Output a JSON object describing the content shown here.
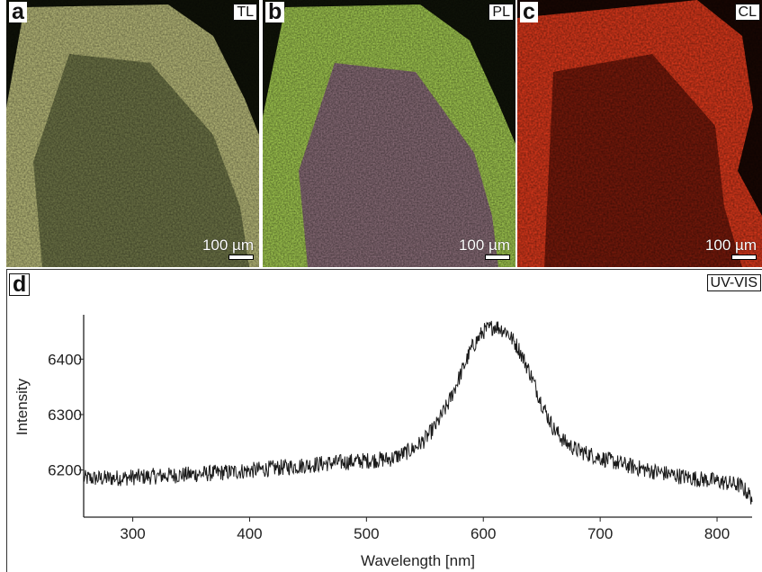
{
  "panels": [
    {
      "letter": "a",
      "mode": "TL",
      "scale": "100 µm",
      "colors": [
        "#0f1208",
        "#b9bb7a",
        "#6f7648"
      ]
    },
    {
      "letter": "b",
      "mode": "PL",
      "scale": "100 µm",
      "colors": [
        "#101409",
        "#a6cf52",
        "#8c6f7a"
      ]
    },
    {
      "letter": "c",
      "mode": "CL",
      "scale": "100 µm",
      "colors": [
        "#1a0703",
        "#e23a1c",
        "#7c1a0b"
      ]
    }
  ],
  "plot_panel": {
    "letter": "d",
    "mode": "UV-VIS"
  },
  "chart_data": {
    "type": "line",
    "xlabel": "Wavelength [nm]",
    "ylabel": "Intensity",
    "xlim": [
      258,
      830
    ],
    "ylim": [
      6115,
      6480
    ],
    "xticks": [
      300,
      400,
      500,
      600,
      700,
      800
    ],
    "yticks": [
      6200,
      6300,
      6400
    ],
    "series": [
      {
        "color": "#1a1a1a",
        "x": [
          258,
          280,
          300,
          320,
          340,
          360,
          380,
          400,
          420,
          440,
          460,
          480,
          500,
          520,
          530,
          540,
          550,
          560,
          570,
          580,
          590,
          600,
          610,
          620,
          630,
          640,
          650,
          660,
          670,
          680,
          700,
          720,
          740,
          760,
          780,
          800,
          820,
          830
        ],
        "y": [
          6185,
          6185,
          6187,
          6189,
          6191,
          6193,
          6196,
          6199,
          6203,
          6207,
          6211,
          6214,
          6217,
          6220,
          6228,
          6238,
          6255,
          6282,
          6320,
          6370,
          6420,
          6450,
          6460,
          6450,
          6420,
          6375,
          6320,
          6275,
          6250,
          6236,
          6222,
          6210,
          6200,
          6192,
          6185,
          6180,
          6172,
          6150
        ]
      }
    ]
  }
}
